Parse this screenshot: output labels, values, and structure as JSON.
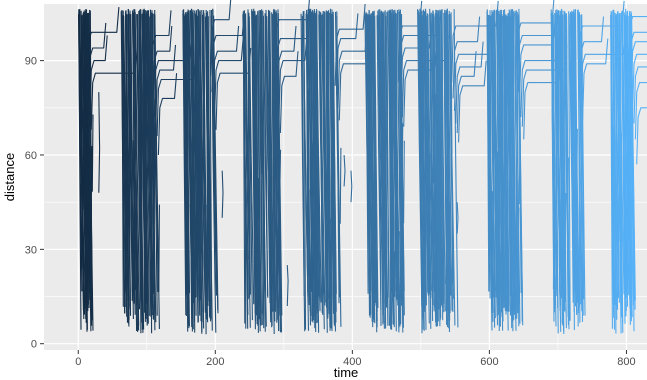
{
  "chart_data": {
    "type": "line",
    "title": "",
    "xlabel": "time",
    "ylabel": "distance",
    "xlim": [
      -50,
      830
    ],
    "ylim": [
      -2,
      108
    ],
    "x_ticks": [
      0,
      200,
      400,
      600,
      800
    ],
    "y_ticks": [
      0,
      30,
      60,
      90
    ],
    "x_tick_labels": [
      "0",
      "200",
      "400",
      "600",
      "800"
    ],
    "y_tick_labels": [
      "0",
      "30",
      "60",
      "90"
    ],
    "grid": true,
    "legend": "none",
    "colors": {
      "panel": "#ebebeb",
      "grid": "#ffffff",
      "low": "#132b43",
      "high": "#56b1f7"
    },
    "clusters": [
      {
        "x_start": 0,
        "x_end": 18,
        "plateaus": [
          99,
          94,
          90,
          86
        ],
        "segments": [
          [
            5,
            24,
            52,
            75
          ],
          [
            15,
            45,
            55,
            70
          ],
          [
            30,
            48,
            62,
            80
          ]
        ]
      },
      {
        "x_start": 62,
        "x_end": 112,
        "plateaus": [
          98,
          93,
          90,
          87,
          84,
          78
        ],
        "segments": [
          [
            105,
            40,
            60,
            85
          ]
        ]
      },
      {
        "x_start": 150,
        "x_end": 198,
        "plateaus": [
          103,
          98,
          93,
          90,
          86
        ],
        "segments": [
          [
            210,
            40,
            48,
            55
          ]
        ]
      },
      {
        "x_start": 240,
        "x_end": 292,
        "plateaus": [
          103,
          97,
          93,
          90,
          85
        ],
        "segments": [
          [
            260,
            10,
            15,
            17
          ],
          [
            305,
            12,
            20,
            25
          ]
        ]
      },
      {
        "x_start": 325,
        "x_end": 380,
        "plateaus": [
          100,
          97,
          93,
          89
        ],
        "segments": [
          [
            388,
            50,
            55,
            60
          ]
        ]
      },
      {
        "x_start": 418,
        "x_end": 472,
        "plateaus": [
          101,
          98,
          94,
          90,
          87
        ],
        "segments": [
          [
            398,
            45,
            50,
            55
          ]
        ]
      },
      {
        "x_start": 495,
        "x_end": 550,
        "plateaus": [
          101,
          96,
          92,
          88,
          85,
          82
        ],
        "segments": [
          [
            553,
            35,
            40,
            45
          ]
        ]
      },
      {
        "x_start": 595,
        "x_end": 645,
        "plateaus": [
          102,
          98,
          95,
          90,
          87,
          83
        ],
        "segments": [
          [
            600,
            25,
            35,
            40
          ]
        ]
      },
      {
        "x_start": 690,
        "x_end": 735,
        "plateaus": [
          101,
          96,
          92,
          89
        ],
        "segments": [
          [
            695,
            10,
            20,
            25
          ]
        ]
      },
      {
        "x_start": 775,
        "x_end": 808,
        "plateaus": [
          104,
          99,
          96,
          92,
          88,
          83,
          75
        ],
        "segments": []
      }
    ]
  }
}
